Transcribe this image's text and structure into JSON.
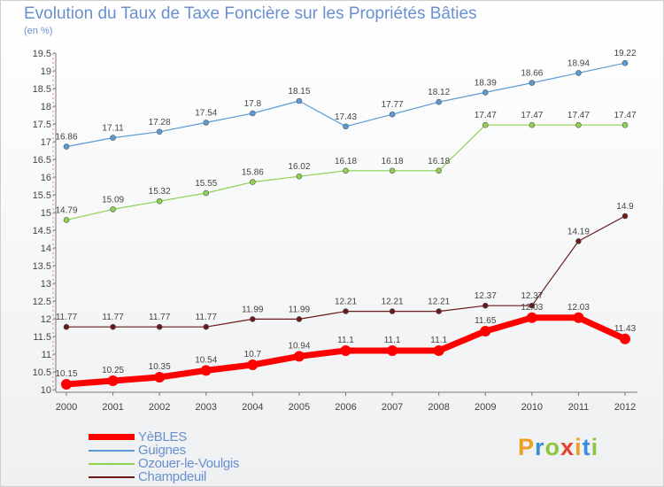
{
  "title": "Evolution du Taux de Taxe Foncière sur les Propriétés Bâties",
  "subtitle": "(en %)",
  "chart_data": {
    "type": "line",
    "title": "Evolution du Taux de Taxe Foncière sur les Propriétés Bâties",
    "ylabel": "(en %)",
    "xlabel": "",
    "x": [
      "2000",
      "2001",
      "2002",
      "2003",
      "2004",
      "2005",
      "2006",
      "2007",
      "2008",
      "2009",
      "2010",
      "2011",
      "2012"
    ],
    "ylim": [
      10,
      19.5
    ],
    "yticks": [
      "10",
      "10.5",
      "11",
      "11.5",
      "12",
      "12.5",
      "13",
      "13.5",
      "14",
      "14.5",
      "15",
      "15.5",
      "16",
      "16.5",
      "17",
      "17.5",
      "18",
      "18.5",
      "19",
      "19.5"
    ],
    "grid": false,
    "legend_position": "bottom-left",
    "series": [
      {
        "name": "YèBLES",
        "color": "#ff0000",
        "values": [
          10.15,
          10.25,
          10.35,
          10.54,
          10.7,
          10.94,
          11.1,
          11.1,
          11.1,
          11.65,
          12.03,
          12.03,
          11.43
        ]
      },
      {
        "name": "Guignes",
        "color": "#5b9bd5",
        "values": [
          16.86,
          17.11,
          17.28,
          17.54,
          17.8,
          18.15,
          17.43,
          17.77,
          18.12,
          18.39,
          18.66,
          18.94,
          19.22
        ]
      },
      {
        "name": "Ozouer-le-Voulgis",
        "color": "#8fd14f",
        "values": [
          14.79,
          15.09,
          15.32,
          15.55,
          15.86,
          16.02,
          16.18,
          16.18,
          16.18,
          17.47,
          17.47,
          17.47,
          17.47
        ]
      },
      {
        "name": "Champdeuil",
        "color": "#6b1a1a",
        "values": [
          11.77,
          11.77,
          11.77,
          11.77,
          11.99,
          11.99,
          12.21,
          12.21,
          12.21,
          12.37,
          12.37,
          14.19,
          14.9
        ]
      }
    ]
  },
  "legend": [
    {
      "label": "YèBLES",
      "color": "#ff0000"
    },
    {
      "label": "Guignes",
      "color": "#5b9bd5"
    },
    {
      "label": "Ozouer-le-Voulgis",
      "color": "#8fd14f"
    },
    {
      "label": "Champdeuil",
      "color": "#6b1a1a"
    }
  ],
  "logo": {
    "letters": [
      "P",
      "r",
      "o",
      "x",
      "i",
      "t",
      "i"
    ],
    "colors": [
      "#f0a020",
      "#3a8fd8",
      "#8cc63f",
      "#e8412c",
      "#f0a020",
      "#3a8fd8",
      "#8cc63f"
    ]
  }
}
